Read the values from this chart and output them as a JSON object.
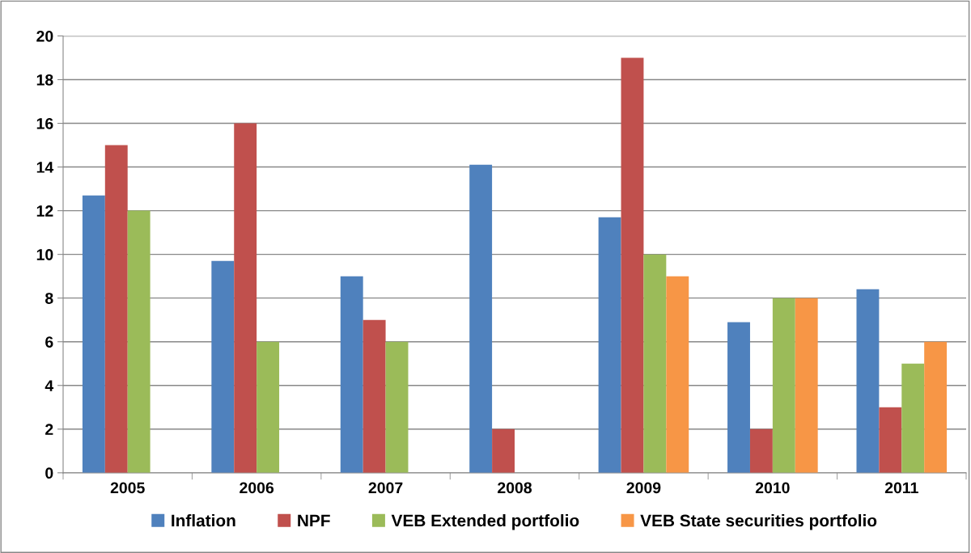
{
  "chart_data": {
    "type": "bar",
    "categories": [
      "2005",
      "2006",
      "2007",
      "2008",
      "2009",
      "2010",
      "2011"
    ],
    "series": [
      {
        "name": "Inflation",
        "color": "#4f81bd",
        "values": [
          12.7,
          9.7,
          9.0,
          14.1,
          11.7,
          6.9,
          8.4
        ]
      },
      {
        "name": "NPF",
        "color": "#c0504d",
        "values": [
          15,
          16,
          7,
          2,
          19,
          2,
          3
        ]
      },
      {
        "name": "VEB Extended portfolio",
        "color": "#9bbb59",
        "values": [
          12,
          6,
          6,
          null,
          10,
          8,
          5
        ]
      },
      {
        "name": "VEB State securities portfolio",
        "color": "#f79646",
        "values": [
          null,
          null,
          null,
          null,
          9,
          8,
          6
        ]
      }
    ],
    "ylim": [
      0,
      20
    ],
    "yticks": [
      0,
      2,
      4,
      6,
      8,
      10,
      12,
      14,
      16,
      18,
      20
    ],
    "grid": "y",
    "legend": "bottom"
  }
}
